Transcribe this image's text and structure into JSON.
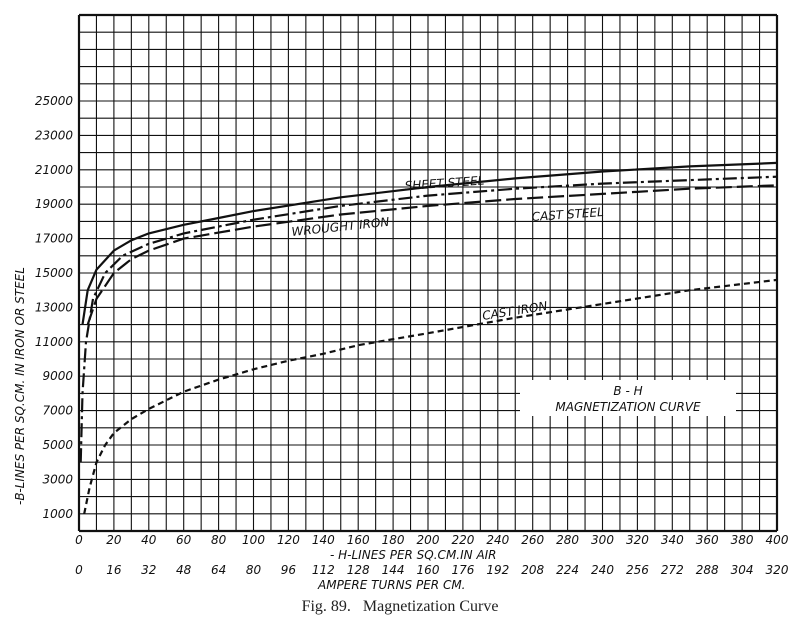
{
  "chart_data": {
    "type": "line",
    "title": "B-H MAGNETIZATION CURVE",
    "caption": "Fig. 89.   Magnetization Curve",
    "xlabel": "- H-LINES PER SQ.CM.IN AIR",
    "xlabel2": "AMPERE TURNS PER CM.",
    "ylabel": "-B-LINES PER SQ.CM. IN IRON OR STEEL",
    "xlim": [
      0,
      400
    ],
    "ylim": [
      0,
      30000
    ],
    "grid": true,
    "x_ticks": [
      "0",
      "20",
      "40",
      "60",
      "80",
      "100",
      "120",
      "140",
      "160",
      "180",
      "200",
      "220",
      "240",
      "260",
      "280",
      "300",
      "320",
      "340",
      "360",
      "380",
      "400"
    ],
    "x2_ticks": [
      "0",
      "16",
      "32",
      "48",
      "64",
      "80",
      "96",
      "112",
      "128",
      "144",
      "160",
      "176",
      "192",
      "208",
      "224",
      "240",
      "256",
      "272",
      "288",
      "304",
      "320"
    ],
    "y_ticks": [
      "1000",
      "3000",
      "5000",
      "7000",
      "9000",
      "11000",
      "13000",
      "15000",
      "17000",
      "19000",
      "21000",
      "23000",
      "25000"
    ],
    "series": [
      {
        "name": "SHEET STEEL",
        "style": "solid",
        "x": [
          2,
          5,
          10,
          20,
          30,
          40,
          60,
          80,
          100,
          150,
          200,
          250,
          300,
          350,
          400
        ],
        "y": [
          12000,
          14000,
          15200,
          16300,
          16900,
          17300,
          17800,
          18200,
          18600,
          19400,
          20000,
          20500,
          20900,
          21200,
          21400
        ]
      },
      {
        "name": "CAST STEEL",
        "style": "dashdot",
        "x": [
          1,
          2,
          4,
          8,
          15,
          25,
          40,
          60,
          100,
          150,
          200,
          250,
          300,
          350,
          400
        ],
        "y": [
          4000,
          8000,
          11000,
          13500,
          15000,
          16000,
          16700,
          17300,
          18100,
          18900,
          19500,
          19900,
          20200,
          20400,
          20600
        ]
      },
      {
        "name": "WROUGHT IRON",
        "style": "longdash",
        "x": [
          5,
          10,
          20,
          30,
          40,
          60,
          100,
          150,
          200,
          250,
          300,
          350,
          400
        ],
        "y": [
          12000,
          13500,
          15000,
          15800,
          16300,
          17000,
          17700,
          18400,
          18900,
          19300,
          19600,
          19900,
          20100
        ]
      },
      {
        "name": "CAST IRON",
        "style": "dash",
        "x": [
          3,
          6,
          10,
          15,
          20,
          30,
          40,
          60,
          80,
          100,
          120,
          140,
          160,
          200,
          250,
          300,
          350,
          400
        ],
        "y": [
          1000,
          2500,
          4000,
          5000,
          5700,
          6500,
          7100,
          8100,
          8800,
          9400,
          9900,
          10300,
          10800,
          11500,
          12400,
          13200,
          14000,
          14600
        ]
      }
    ]
  }
}
